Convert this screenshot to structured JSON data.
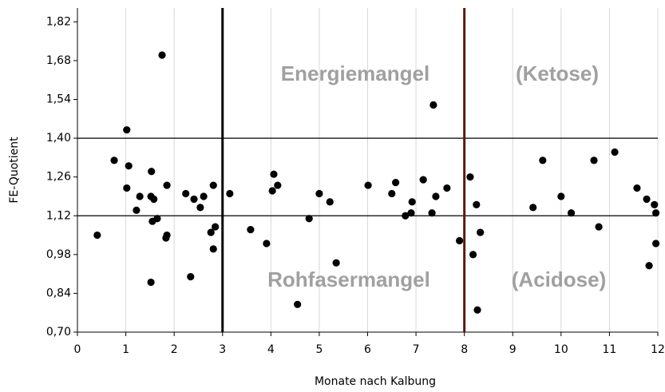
{
  "chart_data": {
    "type": "scatter",
    "xlabel": "Monate nach Kalbung",
    "ylabel": "FE-Quotient",
    "xlim": [
      0,
      12
    ],
    "ylim": [
      0.7,
      1.87
    ],
    "xticks": [
      0,
      1,
      2,
      3,
      4,
      5,
      6,
      7,
      8,
      9,
      10,
      11,
      12
    ],
    "yticks": [
      {
        "value": 0.7,
        "label": "0,70"
      },
      {
        "value": 0.84,
        "label": "0,84"
      },
      {
        "value": 0.98,
        "label": "0,98"
      },
      {
        "value": 1.12,
        "label": "1,12"
      },
      {
        "value": 1.26,
        "label": "1,26"
      },
      {
        "value": 1.4,
        "label": "1,40"
      },
      {
        "value": 1.54,
        "label": "1,54"
      },
      {
        "value": 1.68,
        "label": "1,68"
      },
      {
        "value": 1.82,
        "label": "1,82"
      }
    ],
    "grid": "x",
    "color": "#000000",
    "hlines": [
      1.4,
      1.12
    ],
    "vlines": [
      {
        "value": 3,
        "color": "#000000"
      },
      {
        "value": 8,
        "color": "#5c1a10"
      }
    ],
    "annotations": [
      "Energiemangel",
      "(Ketose)",
      "Rohfasermangel",
      "(Acidose)"
    ],
    "x": [
      0.41,
      0.76,
      1.02,
      1.06,
      1.02,
      1.29,
      1.22,
      1.53,
      1.52,
      1.58,
      1.55,
      1.65,
      1.75,
      1.85,
      1.85,
      1.83,
      1.52,
      2.24,
      2.41,
      2.54,
      2.61,
      2.81,
      2.76,
      2.85,
      2.81,
      2.34,
      3.15,
      3.58,
      3.91,
      4.06,
      4.14,
      4.03,
      4.55,
      4.79,
      5.0,
      5.22,
      5.35,
      6.01,
      6.5,
      6.58,
      6.78,
      6.92,
      6.9,
      7.15,
      7.33,
      7.36,
      7.41,
      7.64,
      7.9,
      8.12,
      8.18,
      8.25,
      8.27,
      8.33,
      9.42,
      9.62,
      10.0,
      10.21,
      10.68,
      10.78,
      11.11,
      11.57,
      11.77,
      11.82,
      11.93,
      11.96,
      11.96
    ],
    "values": [
      1.05,
      1.32,
      1.43,
      1.3,
      1.22,
      1.19,
      1.14,
      1.28,
      1.19,
      1.18,
      1.1,
      1.11,
      1.7,
      1.23,
      1.05,
      1.04,
      0.88,
      1.2,
      1.18,
      1.15,
      1.19,
      1.23,
      1.06,
      1.08,
      1.0,
      0.9,
      1.2,
      1.07,
      1.02,
      1.27,
      1.23,
      1.21,
      0.8,
      1.11,
      1.2,
      1.17,
      0.95,
      1.23,
      1.2,
      1.24,
      1.12,
      1.17,
      1.13,
      1.25,
      1.13,
      1.52,
      1.19,
      1.22,
      1.03,
      1.26,
      0.98,
      1.16,
      0.78,
      1.06,
      1.15,
      1.32,
      1.19,
      1.13,
      1.32,
      1.08,
      1.35,
      1.22,
      1.18,
      0.94,
      1.16,
      1.13,
      1.02
    ]
  }
}
